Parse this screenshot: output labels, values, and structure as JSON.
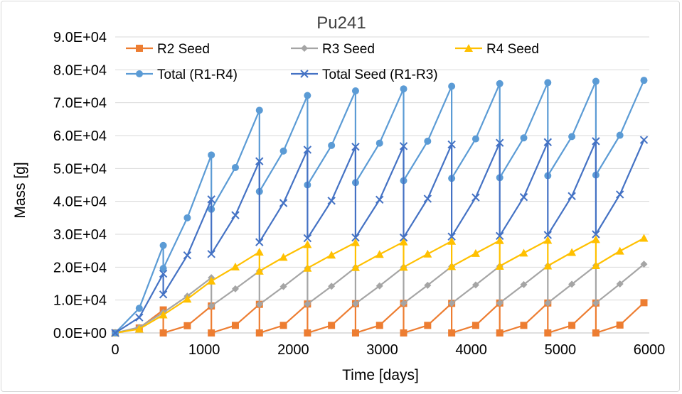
{
  "chart_data": {
    "type": "line",
    "title": "Pu241",
    "xlabel": "Time [days]",
    "ylabel": "Mass [g]",
    "xlim": [
      0,
      6000
    ],
    "ylim": [
      0,
      90000
    ],
    "x_ticks": [
      "0",
      "1000",
      "2000",
      "3000",
      "4000",
      "5000",
      "6000"
    ],
    "y_ticks": [
      "0.0E+00",
      "1.0E+04",
      "2.0E+04",
      "3.0E+04",
      "4.0E+04",
      "5.0E+04",
      "6.0E+04",
      "7.0E+04",
      "8.0E+04",
      "9.0E+04"
    ],
    "grid": "horizontal",
    "legend": "top",
    "series": [
      {
        "name": "R2 Seed",
        "color": "#ED7D31",
        "marker": "square",
        "points": [
          [
            0,
            0
          ],
          [
            270,
            1500
          ],
          [
            540,
            7000
          ],
          [
            540,
            0
          ],
          [
            810,
            2200
          ],
          [
            1080,
            8200
          ],
          [
            1080,
            0
          ],
          [
            1350,
            2300
          ],
          [
            1620,
            8700
          ],
          [
            1620,
            0
          ],
          [
            1890,
            2300
          ],
          [
            2160,
            8800
          ],
          [
            2160,
            0
          ],
          [
            2430,
            2300
          ],
          [
            2700,
            8900
          ],
          [
            2700,
            0
          ],
          [
            2970,
            2300
          ],
          [
            3240,
            9000
          ],
          [
            3240,
            0
          ],
          [
            3510,
            2300
          ],
          [
            3780,
            9000
          ],
          [
            3780,
            0
          ],
          [
            4050,
            2300
          ],
          [
            4320,
            9100
          ],
          [
            4320,
            0
          ],
          [
            4590,
            2300
          ],
          [
            4860,
            9100
          ],
          [
            4860,
            0
          ],
          [
            5130,
            2300
          ],
          [
            5400,
            9100
          ],
          [
            5400,
            0
          ],
          [
            5670,
            2400
          ],
          [
            5940,
            9200
          ]
        ]
      },
      {
        "name": "R3 Seed",
        "color": "#A5A5A5",
        "marker": "diamond",
        "points": [
          [
            0,
            0
          ],
          [
            270,
            1700
          ],
          [
            540,
            6200
          ],
          [
            810,
            11200
          ],
          [
            1080,
            16800
          ],
          [
            1080,
            8200
          ],
          [
            1350,
            13400
          ],
          [
            1620,
            18800
          ],
          [
            1620,
            8700
          ],
          [
            1890,
            14100
          ],
          [
            2160,
            19700
          ],
          [
            2160,
            8800
          ],
          [
            2430,
            14200
          ],
          [
            2700,
            19900
          ],
          [
            2700,
            8900
          ],
          [
            2970,
            14300
          ],
          [
            3240,
            20000
          ],
          [
            3240,
            9000
          ],
          [
            3510,
            14500
          ],
          [
            3780,
            20200
          ],
          [
            3780,
            9000
          ],
          [
            4050,
            14600
          ],
          [
            4320,
            20300
          ],
          [
            4320,
            9100
          ],
          [
            4590,
            14700
          ],
          [
            4860,
            20400
          ],
          [
            4860,
            9100
          ],
          [
            5130,
            14800
          ],
          [
            5400,
            20500
          ],
          [
            5400,
            9100
          ],
          [
            5670,
            14900
          ],
          [
            5940,
            20900
          ]
        ]
      },
      {
        "name": "R4 Seed",
        "color": "#FFC000",
        "marker": "triangle",
        "points": [
          [
            0,
            0
          ],
          [
            270,
            1200
          ],
          [
            540,
            5500
          ],
          [
            810,
            10300
          ],
          [
            1080,
            15800
          ],
          [
            1350,
            20100
          ],
          [
            1620,
            24600
          ],
          [
            1620,
            18800
          ],
          [
            1890,
            23000
          ],
          [
            2160,
            26900
          ],
          [
            2160,
            19700
          ],
          [
            2430,
            23700
          ],
          [
            2700,
            27500
          ],
          [
            2700,
            19900
          ],
          [
            2970,
            23900
          ],
          [
            3240,
            27700
          ],
          [
            3240,
            20000
          ],
          [
            3510,
            24000
          ],
          [
            3780,
            27900
          ],
          [
            3780,
            20200
          ],
          [
            4050,
            24200
          ],
          [
            4320,
            28100
          ],
          [
            4320,
            20300
          ],
          [
            4590,
            24300
          ],
          [
            4860,
            28200
          ],
          [
            4860,
            20400
          ],
          [
            5130,
            24500
          ],
          [
            5400,
            28400
          ],
          [
            5400,
            20500
          ],
          [
            5670,
            24900
          ],
          [
            5940,
            28800
          ]
        ]
      },
      {
        "name": "Total (R1-R4)",
        "color": "#5B9BD5",
        "marker": "circle",
        "points": [
          [
            0,
            0
          ],
          [
            270,
            7500
          ],
          [
            540,
            26600
          ],
          [
            540,
            19600
          ],
          [
            810,
            35000
          ],
          [
            1080,
            54100
          ],
          [
            1080,
            37600
          ],
          [
            1350,
            50300
          ],
          [
            1620,
            67700
          ],
          [
            1620,
            43000
          ],
          [
            1890,
            55300
          ],
          [
            2160,
            72200
          ],
          [
            2160,
            45000
          ],
          [
            2430,
            57000
          ],
          [
            2700,
            73600
          ],
          [
            2700,
            45700
          ],
          [
            2970,
            57700
          ],
          [
            3240,
            74200
          ],
          [
            3240,
            46300
          ],
          [
            3510,
            58300
          ],
          [
            3780,
            75000
          ],
          [
            3780,
            47000
          ],
          [
            4050,
            59000
          ],
          [
            4320,
            75800
          ],
          [
            4320,
            47200
          ],
          [
            4590,
            59300
          ],
          [
            4860,
            76100
          ],
          [
            4860,
            47800
          ],
          [
            5130,
            59700
          ],
          [
            5400,
            76500
          ],
          [
            5400,
            48000
          ],
          [
            5670,
            60100
          ],
          [
            5940,
            76800
          ]
        ]
      },
      {
        "name": "Total Seed (R1-R3)",
        "color": "#4472C4",
        "marker": "x",
        "points": [
          [
            0,
            0
          ],
          [
            270,
            4700
          ],
          [
            540,
            18000
          ],
          [
            540,
            11700
          ],
          [
            810,
            23600
          ],
          [
            1080,
            40600
          ],
          [
            1080,
            24000
          ],
          [
            1350,
            35800
          ],
          [
            1620,
            52200
          ],
          [
            1620,
            27600
          ],
          [
            1890,
            39500
          ],
          [
            2160,
            55700
          ],
          [
            2160,
            28800
          ],
          [
            2430,
            40200
          ],
          [
            2700,
            56600
          ],
          [
            2700,
            29000
          ],
          [
            2970,
            40500
          ],
          [
            3240,
            56800
          ],
          [
            3240,
            29000
          ],
          [
            3510,
            40800
          ],
          [
            3780,
            57300
          ],
          [
            3780,
            29300
          ],
          [
            4050,
            41200
          ],
          [
            4320,
            57800
          ],
          [
            4320,
            29500
          ],
          [
            4590,
            41300
          ],
          [
            4860,
            58000
          ],
          [
            4860,
            29800
          ],
          [
            5130,
            41600
          ],
          [
            5400,
            58300
          ],
          [
            5400,
            30000
          ],
          [
            5670,
            42100
          ],
          [
            5940,
            58700
          ]
        ]
      }
    ]
  }
}
